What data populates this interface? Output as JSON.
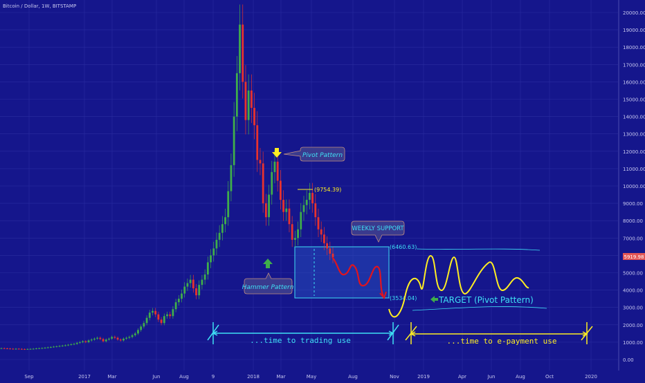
{
  "header": {
    "symbol": "Bitcoin / Dollar, 1W, BITSTAMP"
  },
  "colors": {
    "background": "#15168c",
    "grid": "#2a2ca0",
    "up": "#3fae4a",
    "down": "#e8322e",
    "cyan": "#3fe0f5",
    "yellow": "#ffee22",
    "red_path": "#e0141e",
    "label_box": "#3a3a8e"
  },
  "chart_data": {
    "type": "candlestick",
    "title": "Bitcoin / Dollar, 1W, BITSTAMP",
    "ylim": [
      0,
      20500
    ],
    "y_ticks": [
      "0.00",
      "1000.00",
      "2000.00",
      "3000.00",
      "4000.00",
      "5000.00",
      "6000.00",
      "7000.00",
      "8000.00",
      "9000.00",
      "10000.00",
      "11000.00",
      "12000.00",
      "13000.00",
      "14000.00",
      "15000.00",
      "16000.00",
      "17000.00",
      "18000.00",
      "19000.00",
      "20000.00"
    ],
    "x_ticks": [
      "Sep",
      "2017",
      "Mar",
      "Jun",
      "Aug",
      "9",
      "2018",
      "Mar",
      "May",
      "Aug",
      "Nov",
      "2019",
      "Apr",
      "Jun",
      "Aug",
      "Oct",
      "2020"
    ],
    "current_price": "5919.98",
    "annotations": {
      "pivot_pattern": "Pivot Pattern",
      "hammer_pattern": "Hammer Pattern",
      "weekly_support": "WEEKLY SUPPORT",
      "level_9754": "(9754.39)",
      "level_6460": "(6460.63)",
      "level_3534": "(3534.04)",
      "target": "TARGET (Pivot Pattern)",
      "trading_use": "...time to trading use",
      "payment_use": "...time to e-payment use"
    }
  }
}
